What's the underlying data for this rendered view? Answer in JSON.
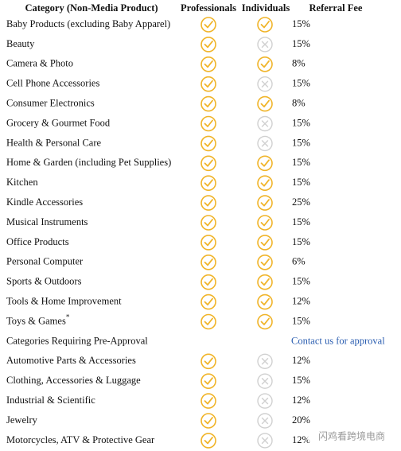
{
  "table": {
    "header": [
      "Category (Non-Media Product)",
      "Professionals",
      "Individuals",
      "Referral Fee"
    ],
    "rows": [
      {
        "category": "Baby Products (excluding Baby Apparel)",
        "professionals": true,
        "individuals": true,
        "fee": "15%"
      },
      {
        "category": "Beauty",
        "professionals": true,
        "individuals": false,
        "fee": "15%"
      },
      {
        "category": "Camera & Photo",
        "professionals": true,
        "individuals": true,
        "fee": "8%"
      },
      {
        "category": "Cell Phone Accessories",
        "professionals": true,
        "individuals": false,
        "fee": "15%"
      },
      {
        "category": "Consumer Electronics",
        "professionals": true,
        "individuals": true,
        "fee": "8%"
      },
      {
        "category": "Grocery & Gourmet Food",
        "professionals": true,
        "individuals": false,
        "fee": "15%"
      },
      {
        "category": "Health & Personal Care",
        "professionals": true,
        "individuals": false,
        "fee": "15%"
      },
      {
        "category": "Home & Garden (including Pet Supplies)",
        "professionals": true,
        "individuals": true,
        "fee": "15%"
      },
      {
        "category": "Kitchen",
        "professionals": true,
        "individuals": true,
        "fee": "15%"
      },
      {
        "category": "Kindle Accessories",
        "professionals": true,
        "individuals": true,
        "fee": "25%"
      },
      {
        "category": "Musical Instruments",
        "professionals": true,
        "individuals": true,
        "fee": "15%"
      },
      {
        "category": "Office Products",
        "professionals": true,
        "individuals": true,
        "fee": "15%"
      },
      {
        "category": "Personal Computer",
        "professionals": true,
        "individuals": true,
        "fee": "6%"
      },
      {
        "category": "Sports & Outdoors",
        "professionals": true,
        "individuals": true,
        "fee": "15%"
      },
      {
        "category": "Tools & Home Improvement",
        "professionals": true,
        "individuals": true,
        "fee": "12%"
      },
      {
        "category": "Toys & Games",
        "note": "*",
        "professionals": true,
        "individuals": true,
        "fee": "15%"
      },
      {
        "category": "Categories Requiring Pre-Approval",
        "link": "Contact us for approval"
      },
      {
        "category": "Automotive Parts & Accessories",
        "professionals": true,
        "individuals": false,
        "fee": "12%"
      },
      {
        "category": "Clothing, Accessories & Luggage",
        "professionals": true,
        "individuals": false,
        "fee": "15%"
      },
      {
        "category": "Industrial & Scientific",
        "professionals": true,
        "individuals": false,
        "fee": "12%"
      },
      {
        "category": "Jewelry",
        "professionals": true,
        "individuals": false,
        "fee": "20%"
      },
      {
        "category": "Motorcycles, ATV & Protective Gear",
        "professionals": true,
        "individuals": false,
        "fee": "12%"
      }
    ]
  },
  "watermark": "闪鸡看跨境电商"
}
